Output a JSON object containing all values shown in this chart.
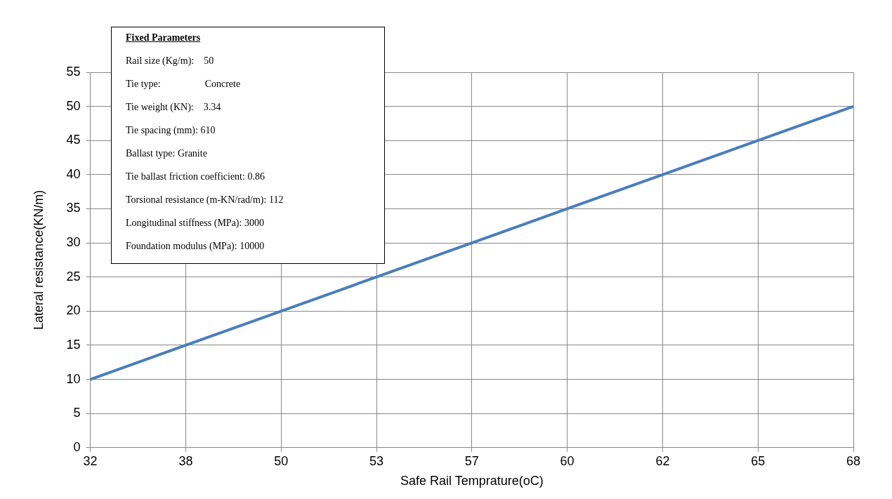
{
  "chart_data": {
    "type": "line",
    "xlabel": "Safe Rail Temprature(oC)",
    "ylabel": "Lateral resistance(KN/m)",
    "categories": [
      "32",
      "38",
      "50",
      "53",
      "57",
      "60",
      "62",
      "65",
      "68"
    ],
    "series": [
      {
        "color": "#4a7ebb",
        "values": [
          10,
          15,
          20,
          25,
          30,
          35,
          40,
          45,
          50
        ]
      }
    ],
    "ylim": [
      0,
      55
    ],
    "yticks": [
      0,
      5,
      10,
      15,
      20,
      25,
      30,
      35,
      40,
      45,
      50,
      55
    ],
    "grid": true,
    "legend": false,
    "marker": "none",
    "line_style": "solid",
    "annotations": [
      "Fixed Parameters",
      "Rail size (Kg/m):    50",
      "Tie type:                  Concrete",
      "Tie weight (KN):    3.34",
      "Tie spacing (mm): 610",
      "Ballast type: Granite",
      "Tie ballast friction coefficient: 0.86",
      "Torsional resistance (m-KN/rad/m): 112",
      "Longitudinal stiffness (MPa): 3000",
      "Foundation modulus (MPa): 10000"
    ]
  }
}
